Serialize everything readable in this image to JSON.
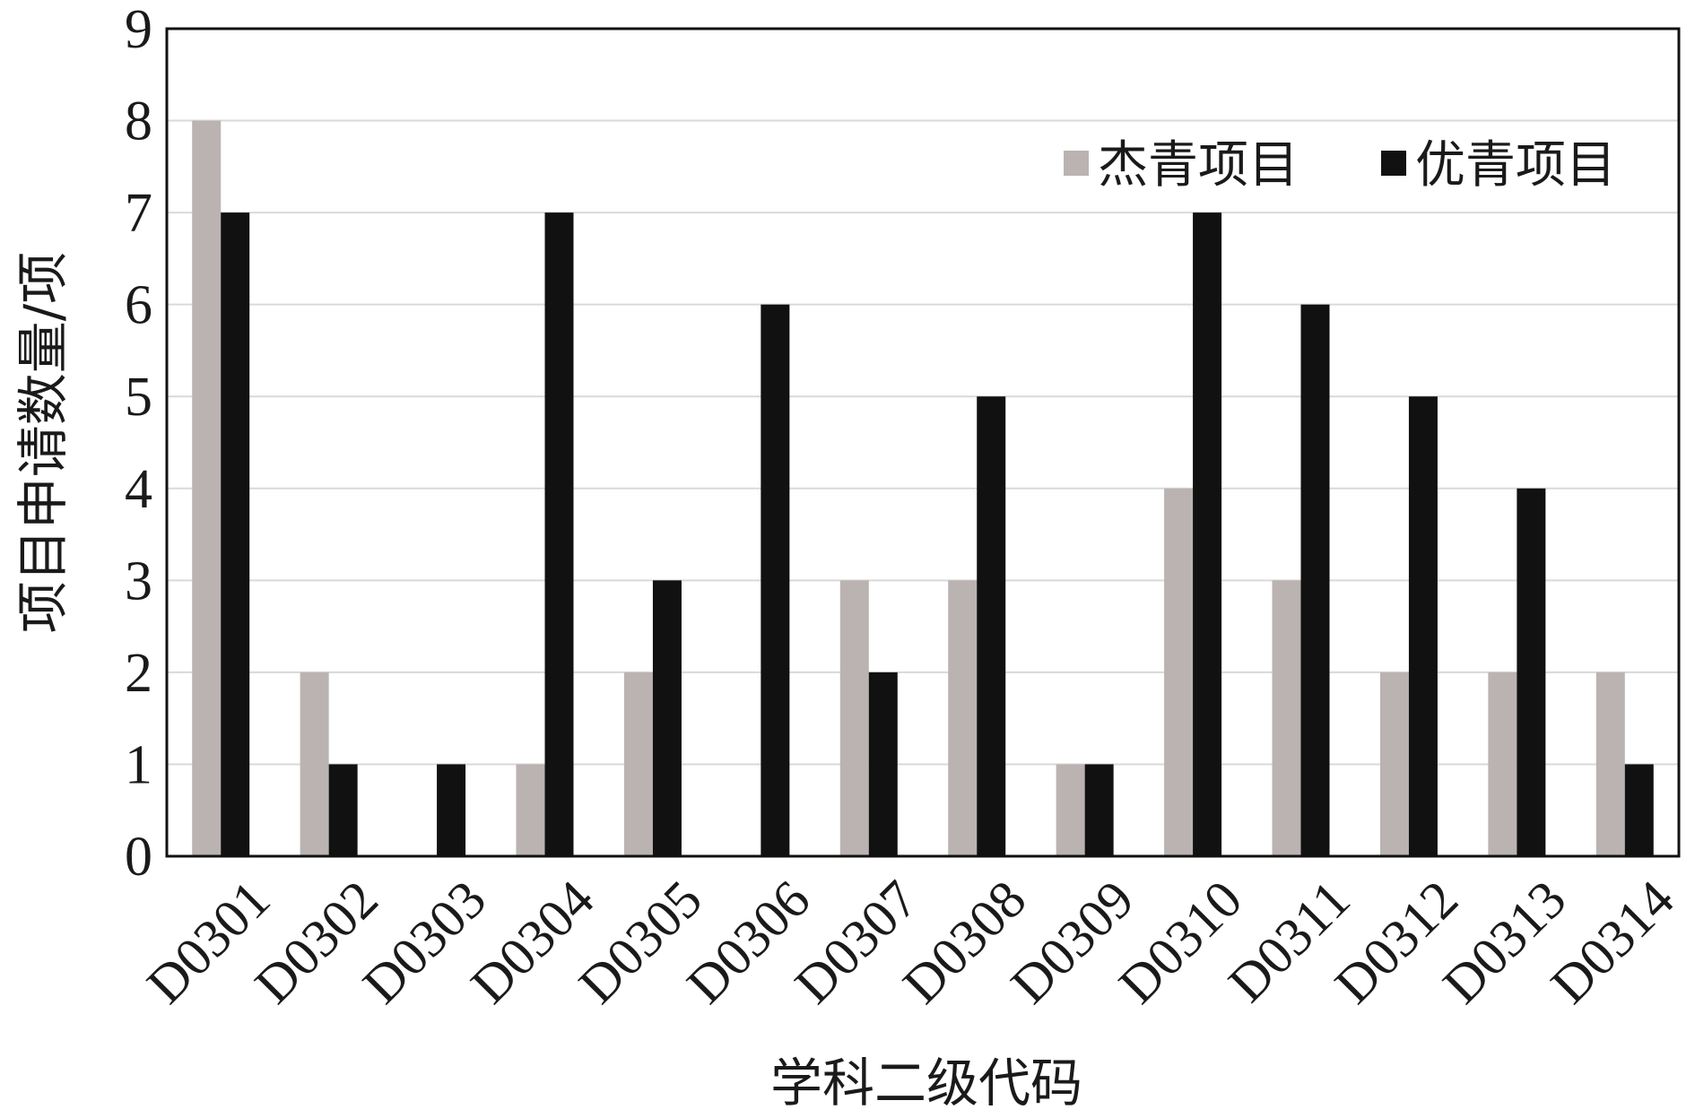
{
  "chart_data": {
    "type": "bar",
    "xlabel": "学科二级代码",
    "ylabel": "项目申请数量/项",
    "ylim": [
      0,
      9
    ],
    "yticks": [
      0,
      1,
      2,
      3,
      4,
      5,
      6,
      7,
      8,
      9
    ],
    "grid": true,
    "legend_position": "top-right",
    "categories": [
      "D0301",
      "D0302",
      "D0303",
      "D0304",
      "D0305",
      "D0306",
      "D0307",
      "D0308",
      "D0309",
      "D0310",
      "D0311",
      "D0312",
      "D0313",
      "D0314"
    ],
    "series": [
      {
        "name": "杰青项目",
        "color": "#bab3b1",
        "values": [
          8,
          2,
          0,
          1,
          2,
          0,
          3,
          3,
          1,
          4,
          3,
          2,
          2,
          2
        ]
      },
      {
        "name": "优青项目",
        "color": "#111111",
        "values": [
          7,
          1,
          1,
          7,
          3,
          6,
          2,
          5,
          1,
          7,
          6,
          5,
          4,
          1
        ]
      }
    ]
  }
}
